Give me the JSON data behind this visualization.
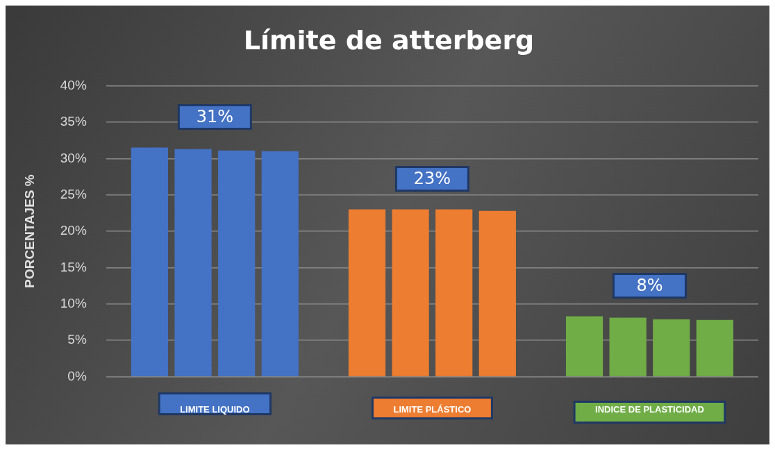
{
  "chart_data": {
    "type": "bar",
    "title": "Límite de atterberg",
    "ylabel": "PORCENTAJES %",
    "categories": [
      "LIMITE LIQUIDO",
      "LIMITE PLÁSTICO",
      "INDICE DE PLASTICIDAD"
    ],
    "series": [
      {
        "colors": [
          "#4472c4",
          "#ed7d31",
          "#70ad47"
        ],
        "values": [
          31.5,
          23.0,
          8.3
        ]
      },
      {
        "colors": [
          "#4472c4",
          "#ed7d31",
          "#70ad47"
        ],
        "values": [
          31.3,
          23.0,
          8.1
        ]
      },
      {
        "colors": [
          "#4472c4",
          "#ed7d31",
          "#70ad47"
        ],
        "values": [
          31.1,
          23.0,
          7.9
        ]
      },
      {
        "colors": [
          "#4472c4",
          "#ed7d31",
          "#70ad47"
        ],
        "values": [
          31.0,
          22.8,
          7.8
        ]
      }
    ],
    "ylim": [
      0,
      40
    ],
    "yticks": [
      {
        "value": 0,
        "label": "0%"
      },
      {
        "value": 5,
        "label": "5%"
      },
      {
        "value": 10,
        "label": "10%"
      },
      {
        "value": 15,
        "label": "15%"
      },
      {
        "value": 20,
        "label": "20%"
      },
      {
        "value": 25,
        "label": "25%"
      },
      {
        "value": 30,
        "label": "30%"
      },
      {
        "value": 35,
        "label": "35%"
      },
      {
        "value": 40,
        "label": "40%"
      }
    ],
    "grid": "y",
    "legend": false,
    "annotations": [
      "31%",
      "23%",
      "8%"
    ]
  }
}
